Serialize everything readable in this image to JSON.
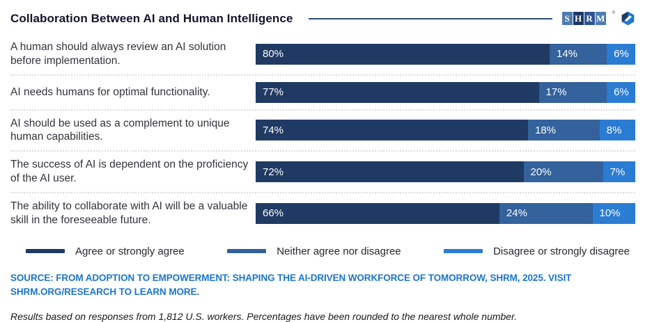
{
  "header": {
    "title": "Collaboration Between AI and Human Intelligence",
    "logo_text": "SHRM",
    "logo_trademark": "®",
    "logo_tile_colors": [
      "#4E7CB1",
      "#1C3765",
      "#2B5492",
      "#4E7CB1"
    ],
    "rule_color": "#2D4C7E"
  },
  "chart_data": {
    "type": "bar",
    "orientation": "horizontal_stacked",
    "value_suffix": "%",
    "xlim": [
      0,
      100
    ],
    "grid": false,
    "legend_position": "bottom",
    "categories": [
      "A human should always review an AI solution before implementation.",
      "AI needs humans for optimal functionality.",
      "AI should be used as a complement to unique human capabilities.",
      "The success of AI is dependent on the proficiency of the AI user.",
      "The ability to collaborate with AI will be a valuable skill in the foreseeable future."
    ],
    "series": [
      {
        "name": "Agree or strongly agree",
        "color": "#1F3A63",
        "values": [
          80,
          77,
          74,
          72,
          66
        ]
      },
      {
        "name": "Neither agree nor disagree",
        "color": "#33629C",
        "values": [
          14,
          17,
          18,
          20,
          24
        ]
      },
      {
        "name": "Disagree or strongly disagree",
        "color": "#2B7CD3",
        "values": [
          6,
          6,
          8,
          7,
          10
        ]
      }
    ]
  },
  "source_text": "SOURCE: FROM ADOPTION TO EMPOWERMENT: SHAPING THE AI-DRIVEN WORKFORCE OF TOMORROW, SHRM, 2025. VISIT SHRM.ORG/RESEARCH TO LEARN MORE.",
  "footnote": "Results based on responses from 1,812 U.S. workers. Percentages have been rounded to the nearest whole number."
}
